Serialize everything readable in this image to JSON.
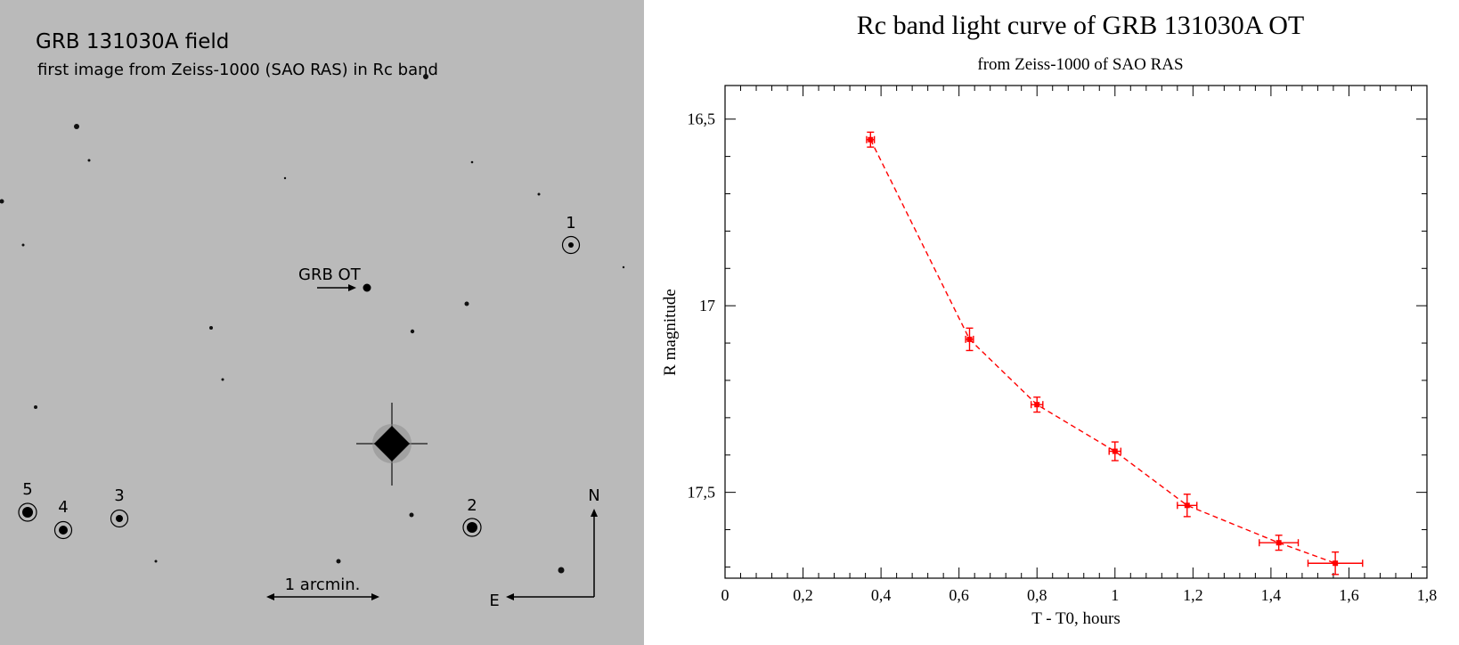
{
  "field": {
    "title": "GRB 131030A field",
    "subtitle": "first image from Zeiss-1000 (SAO RAS) in Rc band",
    "ot_label": "GRB OT",
    "scale_label": "1 arcmin.",
    "compass": {
      "north": "N",
      "east": "E"
    },
    "comparison_stars": [
      "1",
      "2",
      "3",
      "4",
      "5"
    ]
  },
  "chart_data": {
    "type": "scatter",
    "title": "Rc band light curve of GRB 131030A OT",
    "subtitle": "from Zeiss-1000 of SAO RAS",
    "xlabel": "T - T0, hours",
    "ylabel": "R magnitude",
    "xlim": [
      0,
      1.8
    ],
    "ylim": [
      17.73,
      16.41
    ],
    "y_inverted": true,
    "x_ticks": [
      "0",
      "0,2",
      "0,4",
      "0,6",
      "0,8",
      "1",
      "1,2",
      "1,4",
      "1,6",
      "1,8"
    ],
    "y_ticks": [
      "16,5",
      "17",
      "17,5"
    ],
    "line_style": "dashed",
    "color": "#ff0000",
    "series": [
      {
        "x": [
          0.373,
          0.627,
          0.8,
          1.0,
          1.185,
          1.42,
          1.565
        ],
        "y": [
          16.555,
          17.09,
          17.265,
          17.39,
          17.535,
          17.635,
          17.69
        ],
        "x_err": [
          0.01,
          0.01,
          0.015,
          0.015,
          0.025,
          0.05,
          0.07
        ],
        "y_err": [
          0.02,
          0.03,
          0.02,
          0.025,
          0.03,
          0.02,
          0.03
        ]
      }
    ]
  }
}
